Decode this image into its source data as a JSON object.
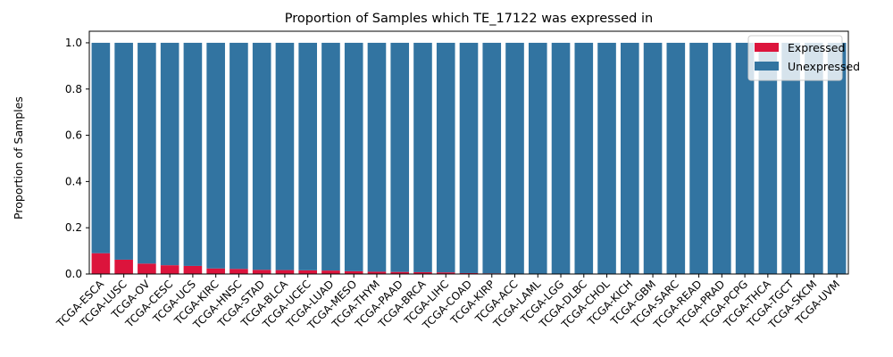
{
  "chart_data": {
    "type": "bar",
    "stacked": true,
    "title": "Proportion of Samples which TE_17122 was expressed in",
    "xlabel": "",
    "ylabel": "Proportion of Samples",
    "ylim": [
      0,
      1.05
    ],
    "yticks": [
      "0.0",
      "0.2",
      "0.4",
      "0.6",
      "0.8",
      "1.0"
    ],
    "categories": [
      "TCGA-ESCA",
      "TCGA-LUSC",
      "TCGA-OV",
      "TCGA-CESC",
      "TCGA-UCS",
      "TCGA-KIRC",
      "TCGA-HNSC",
      "TCGA-STAD",
      "TCGA-BLCA",
      "TCGA-UCEC",
      "TCGA-LUAD",
      "TCGA-MESO",
      "TCGA-THYM",
      "TCGA-PAAD",
      "TCGA-BRCA",
      "TCGA-LIHC",
      "TCGA-COAD",
      "TCGA-KIRP",
      "TCGA-ACC",
      "TCGA-LAML",
      "TCGA-LGG",
      "TCGA-DLBC",
      "TCGA-CHOL",
      "TCGA-KICH",
      "TCGA-GBM",
      "TCGA-SARC",
      "TCGA-READ",
      "TCGA-PRAD",
      "TCGA-PCPG",
      "TCGA-THCA",
      "TCGA-TGCT",
      "TCGA-SKCM",
      "TCGA-UVM"
    ],
    "series": [
      {
        "name": "Expressed",
        "color": "#dc143c",
        "values": [
          0.09,
          0.062,
          0.045,
          0.038,
          0.035,
          0.024,
          0.022,
          0.018,
          0.017,
          0.016,
          0.015,
          0.012,
          0.01,
          0.009,
          0.008,
          0.007,
          0.004,
          0.003,
          0,
          0,
          0,
          0,
          0,
          0,
          0,
          0,
          0,
          0,
          0,
          0,
          0,
          0,
          0
        ]
      },
      {
        "name": "Unexpressed",
        "color": "#3274a1",
        "values": [
          0.91,
          0.938,
          0.955,
          0.962,
          0.965,
          0.976,
          0.978,
          0.982,
          0.983,
          0.984,
          0.985,
          0.988,
          0.99,
          0.991,
          0.992,
          0.993,
          0.996,
          0.997,
          1,
          1,
          1,
          1,
          1,
          1,
          1,
          1,
          1,
          1,
          1,
          1,
          1,
          1,
          1
        ]
      }
    ],
    "legend": {
      "position": "top-right",
      "items": [
        "Expressed",
        "Unexpressed"
      ]
    },
    "grid": false
  }
}
